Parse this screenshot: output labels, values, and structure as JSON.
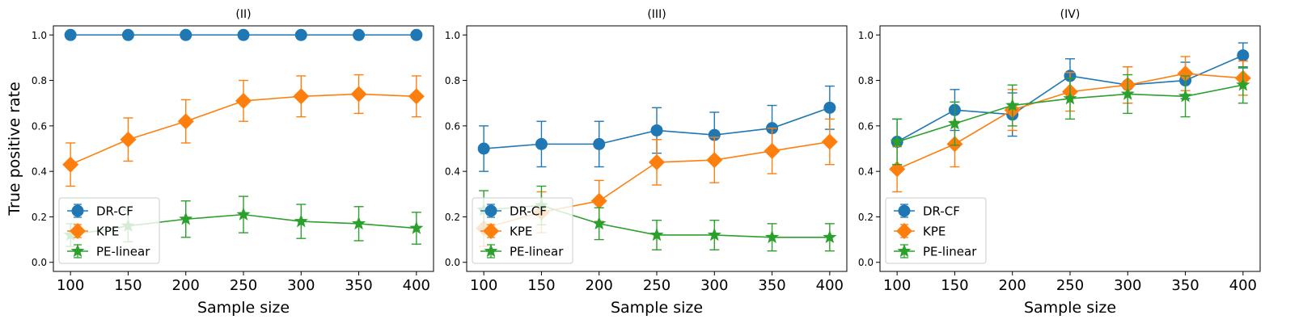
{
  "figure": {
    "ylabel": "True positive rate",
    "series_colors": {
      "DR-CF": "#1f77b4",
      "KPE": "#ff7f0e",
      "PE-linear": "#2ca02c"
    },
    "series_markers": {
      "DR-CF": "circle",
      "KPE": "diamond",
      "PE-linear": "star"
    }
  },
  "chart_data": [
    {
      "type": "line",
      "title": "(II)",
      "xlabel": "Sample size",
      "ylabel": "True positive rate",
      "x": [
        100,
        150,
        200,
        250,
        300,
        350,
        400
      ],
      "xticks": [
        100,
        150,
        200,
        250,
        300,
        350,
        400
      ],
      "yticks": [
        0.0,
        0.2,
        0.4,
        0.6,
        0.8,
        1.0
      ],
      "ylim": [
        -0.04,
        1.04
      ],
      "grid": false,
      "legend": "lower-left",
      "series": [
        {
          "name": "DR-CF",
          "values": [
            1.0,
            1.0,
            1.0,
            1.0,
            1.0,
            1.0,
            1.0
          ],
          "errors": [
            0,
            0,
            0,
            0,
            0,
            0,
            0
          ]
        },
        {
          "name": "KPE",
          "values": [
            0.43,
            0.54,
            0.62,
            0.71,
            0.73,
            0.74,
            0.73
          ],
          "errors": [
            0.095,
            0.095,
            0.095,
            0.09,
            0.09,
            0.085,
            0.09
          ]
        },
        {
          "name": "PE-linear",
          "values": [
            0.12,
            0.16,
            0.19,
            0.21,
            0.18,
            0.17,
            0.15
          ],
          "errors": [
            0.05,
            0.07,
            0.08,
            0.08,
            0.075,
            0.075,
            0.07
          ]
        }
      ]
    },
    {
      "type": "line",
      "title": "(III)",
      "xlabel": "Sample size",
      "ylabel": "",
      "x": [
        100,
        150,
        200,
        250,
        300,
        350,
        400
      ],
      "xticks": [
        100,
        150,
        200,
        250,
        300,
        350,
        400
      ],
      "yticks": [
        0.0,
        0.2,
        0.4,
        0.6,
        0.8,
        1.0
      ],
      "ylim": [
        -0.04,
        1.04
      ],
      "grid": false,
      "legend": "lower-left",
      "series": [
        {
          "name": "DR-CF",
          "values": [
            0.5,
            0.52,
            0.52,
            0.58,
            0.56,
            0.59,
            0.68
          ],
          "errors": [
            0.1,
            0.1,
            0.1,
            0.1,
            0.1,
            0.1,
            0.095
          ]
        },
        {
          "name": "KPE",
          "values": [
            0.15,
            0.22,
            0.27,
            0.44,
            0.45,
            0.49,
            0.53
          ],
          "errors": [
            0.08,
            0.09,
            0.09,
            0.1,
            0.1,
            0.1,
            0.1
          ]
        },
        {
          "name": "PE-linear",
          "values": [
            0.23,
            0.25,
            0.17,
            0.12,
            0.12,
            0.11,
            0.11
          ],
          "errors": [
            0.085,
            0.085,
            0.07,
            0.065,
            0.065,
            0.06,
            0.06
          ]
        }
      ]
    },
    {
      "type": "line",
      "title": "(IV)",
      "xlabel": "Sample size",
      "ylabel": "",
      "x": [
        100,
        150,
        200,
        250,
        300,
        350,
        400
      ],
      "xticks": [
        100,
        150,
        200,
        250,
        300,
        350,
        400
      ],
      "yticks": [
        0.0,
        0.2,
        0.4,
        0.6,
        0.8,
        1.0
      ],
      "ylim": [
        -0.04,
        1.04
      ],
      "grid": false,
      "legend": "lower-left",
      "series": [
        {
          "name": "DR-CF",
          "values": [
            0.53,
            0.67,
            0.65,
            0.82,
            0.78,
            0.8,
            0.91
          ],
          "errors": [
            0.1,
            0.09,
            0.095,
            0.075,
            0.08,
            0.08,
            0.055
          ]
        },
        {
          "name": "KPE",
          "values": [
            0.41,
            0.52,
            0.67,
            0.75,
            0.78,
            0.83,
            0.81
          ],
          "errors": [
            0.1,
            0.1,
            0.09,
            0.085,
            0.08,
            0.075,
            0.075
          ]
        },
        {
          "name": "PE-linear",
          "values": [
            0.53,
            0.61,
            0.69,
            0.72,
            0.74,
            0.73,
            0.78
          ],
          "errors": [
            0.1,
            0.095,
            0.09,
            0.09,
            0.085,
            0.09,
            0.08
          ]
        }
      ]
    }
  ]
}
